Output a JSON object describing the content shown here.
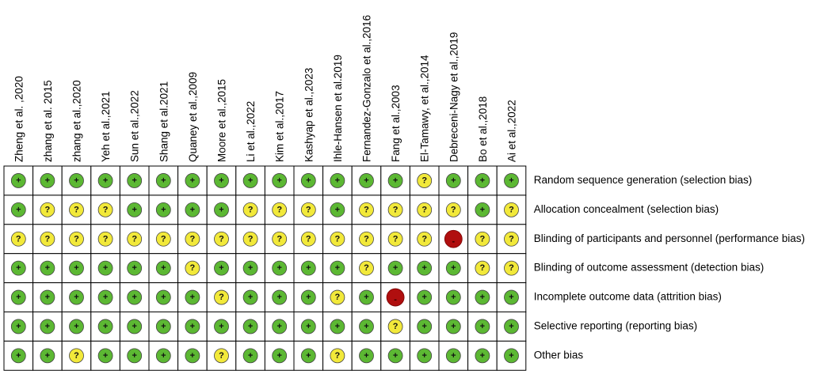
{
  "studies": [
    "Zheng et al. ,2020",
    "zhang et al. 2015",
    "zhang et al.,2020",
    "Yeh et al.,2021",
    "Sun et al.,2022",
    "Shang et al.2021",
    "Quaney et al.,2009",
    "Moore et al.,2015",
    "Li et al.,2022",
    "Kim et al.,2017",
    "Kashyap et al.,2023",
    "Ihle-Hansen et al.2019",
    "Fernandez-Gonzalo et al.,2016",
    "Fang et al.,2003",
    "El-Tamawy, et al.,2014",
    "Debreceni-Nagy et al.,2019",
    "Bo et al.,2018",
    "Ai et al.,2022"
  ],
  "domains": [
    "Random sequence generation (selection bias)",
    "Allocation concealment (selection bias)",
    "Blinding of participants and personnel (performance bias)",
    "Blinding of outcome assessment (detection bias)",
    "Incomplete outcome data (attrition bias)",
    "Selective reporting (reporting bias)",
    "Other bias"
  ],
  "judgments": [
    [
      "+",
      "+",
      "+",
      "+",
      "+",
      "+",
      "+",
      "+",
      "+",
      "+",
      "+",
      "+",
      "+",
      "+",
      "?",
      "+",
      "+",
      "+"
    ],
    [
      "+",
      "?",
      "?",
      "?",
      "+",
      "+",
      "+",
      "+",
      "?",
      "?",
      "?",
      "+",
      "?",
      "?",
      "?",
      "?",
      "+",
      "?"
    ],
    [
      "?",
      "?",
      "?",
      "?",
      "?",
      "?",
      "?",
      "?",
      "?",
      "?",
      "?",
      "?",
      "?",
      "?",
      "?",
      "-",
      "?",
      "?"
    ],
    [
      "+",
      "+",
      "+",
      "+",
      "+",
      "+",
      "?",
      "+",
      "+",
      "+",
      "+",
      "+",
      "?",
      "+",
      "+",
      "+",
      "?",
      "?"
    ],
    [
      "+",
      "+",
      "+",
      "+",
      "+",
      "+",
      "+",
      "?",
      "+",
      "+",
      "+",
      "?",
      "+",
      "-",
      "+",
      "+",
      "+",
      "+"
    ],
    [
      "+",
      "+",
      "+",
      "+",
      "+",
      "+",
      "+",
      "+",
      "+",
      "+",
      "+",
      "+",
      "+",
      "?",
      "+",
      "+",
      "+",
      "+"
    ],
    [
      "+",
      "+",
      "?",
      "+",
      "+",
      "+",
      "+",
      "?",
      "+",
      "+",
      "+",
      "?",
      "+",
      "+",
      "+",
      "+",
      "+",
      "+"
    ]
  ]
}
